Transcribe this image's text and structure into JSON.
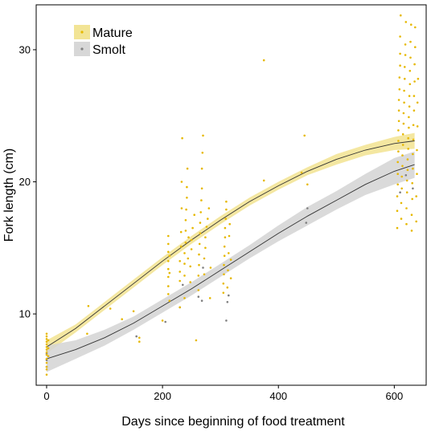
{
  "chart_data": {
    "type": "scatter",
    "title": "",
    "xlabel": "Days since beginning of food treatment",
    "ylabel": "Fork length (cm)",
    "xlim": [
      -18,
      655
    ],
    "ylim": [
      4.6,
      33.4
    ],
    "x_ticks": [
      0,
      200,
      400,
      600
    ],
    "y_ticks": [
      10,
      20,
      30
    ],
    "x_tick_labels": [
      "0",
      "200",
      "400",
      "600"
    ],
    "y_tick_labels": [
      "10",
      "20",
      "30"
    ],
    "grid": false,
    "legend": "top-left",
    "series": [
      {
        "name": "Mature",
        "color": "#e6b800",
        "band_color": "#f0df82",
        "fit": {
          "x": [
            0,
            50,
            100,
            150,
            200,
            250,
            300,
            350,
            400,
            450,
            500,
            550,
            600,
            635
          ],
          "y": [
            7.5,
            8.9,
            10.6,
            12.3,
            14.0,
            15.6,
            17.1,
            18.5,
            19.7,
            20.8,
            21.7,
            22.4,
            22.9,
            23.1
          ],
          "lower": [
            7.0,
            8.6,
            10.3,
            12.0,
            13.7,
            15.3,
            16.8,
            18.2,
            19.4,
            20.5,
            21.3,
            22.0,
            22.4,
            22.5
          ],
          "upper": [
            8.0,
            9.2,
            10.9,
            12.6,
            14.3,
            15.9,
            17.4,
            18.8,
            20.0,
            21.1,
            22.1,
            22.8,
            23.4,
            23.7
          ]
        },
        "points": [
          [
            0,
            5.4
          ],
          [
            0,
            5.8
          ],
          [
            0,
            6.0
          ],
          [
            0,
            6.3
          ],
          [
            0,
            6.6
          ],
          [
            0,
            6.9
          ],
          [
            0,
            7.1
          ],
          [
            0,
            7.3
          ],
          [
            0,
            7.5
          ],
          [
            0,
            7.7
          ],
          [
            0,
            7.9
          ],
          [
            0,
            8.1
          ],
          [
            0,
            8.3
          ],
          [
            0,
            8.5
          ],
          [
            3,
            6.8
          ],
          [
            3,
            7.4
          ],
          [
            3,
            8.0
          ],
          [
            70,
            8.5
          ],
          [
            72,
            10.6
          ],
          [
            110,
            10.4
          ],
          [
            130,
            9.6
          ],
          [
            150,
            10.2
          ],
          [
            160,
            8.2
          ],
          [
            160,
            7.9
          ],
          [
            200,
            9.5
          ],
          [
            210,
            11.5
          ],
          [
            210,
            12.1
          ],
          [
            210,
            12.8
          ],
          [
            210,
            13.4
          ],
          [
            210,
            14.0
          ],
          [
            210,
            14.7
          ],
          [
            210,
            15.3
          ],
          [
            210,
            15.9
          ],
          [
            212,
            11.0
          ],
          [
            212,
            13.1
          ],
          [
            212,
            14.4
          ],
          [
            230,
            10.5
          ],
          [
            230,
            12.5
          ],
          [
            230,
            13.2
          ],
          [
            230,
            14.0
          ],
          [
            232,
            15.1
          ],
          [
            232,
            16.2
          ],
          [
            233,
            18.0
          ],
          [
            233,
            20.0
          ],
          [
            234,
            23.3
          ],
          [
            238,
            11.2
          ],
          [
            238,
            12.9
          ],
          [
            238,
            13.8
          ],
          [
            238,
            14.6
          ],
          [
            240,
            15.4
          ],
          [
            240,
            16.3
          ],
          [
            240,
            17.1
          ],
          [
            241,
            17.9
          ],
          [
            242,
            18.8
          ],
          [
            242,
            19.6
          ],
          [
            243,
            21.0
          ],
          [
            244,
            14.2
          ],
          [
            245,
            15.8
          ],
          [
            248,
            12.4
          ],
          [
            248,
            13.6
          ],
          [
            250,
            14.9
          ],
          [
            250,
            15.6
          ],
          [
            252,
            16.5
          ],
          [
            255,
            17.5
          ],
          [
            258,
            8.0
          ],
          [
            262,
            11.8
          ],
          [
            262,
            12.9
          ],
          [
            263,
            13.7
          ],
          [
            263,
            14.5
          ],
          [
            264,
            15.3
          ],
          [
            265,
            16.1
          ],
          [
            265,
            16.9
          ],
          [
            266,
            17.7
          ],
          [
            267,
            18.6
          ],
          [
            268,
            19.5
          ],
          [
            268,
            21.0
          ],
          [
            269,
            22.2
          ],
          [
            270,
            23.5
          ],
          [
            272,
            13.0
          ],
          [
            272,
            14.2
          ],
          [
            274,
            15.0
          ],
          [
            274,
            15.8
          ],
          [
            276,
            16.6
          ],
          [
            278,
            17.2
          ],
          [
            280,
            18.0
          ],
          [
            282,
            11.2
          ],
          [
            283,
            13.5
          ],
          [
            305,
            11.6
          ],
          [
            305,
            12.3
          ],
          [
            306,
            13.0
          ],
          [
            306,
            13.7
          ],
          [
            307,
            14.4
          ],
          [
            307,
            15.1
          ],
          [
            308,
            15.8
          ],
          [
            308,
            16.5
          ],
          [
            309,
            17.2
          ],
          [
            310,
            17.9
          ],
          [
            310,
            18.5
          ],
          [
            312,
            12.0
          ],
          [
            313,
            13.3
          ],
          [
            314,
            14.6
          ],
          [
            315,
            15.9
          ],
          [
            316,
            16.8
          ],
          [
            318,
            12.7
          ],
          [
            318,
            14.1
          ],
          [
            375,
            29.2
          ],
          [
            375,
            20.1
          ],
          [
            440,
            20.7
          ],
          [
            445,
            23.5
          ],
          [
            450,
            19.8
          ],
          [
            605,
            16.5
          ],
          [
            605,
            17.8
          ],
          [
            605,
            18.9
          ],
          [
            606,
            19.8
          ],
          [
            606,
            20.6
          ],
          [
            606,
            21.5
          ],
          [
            607,
            22.3
          ],
          [
            607,
            23.1
          ],
          [
            607,
            23.9
          ],
          [
            608,
            24.6
          ],
          [
            608,
            25.4
          ],
          [
            608,
            26.2
          ],
          [
            609,
            27.0
          ],
          [
            609,
            27.9
          ],
          [
            610,
            28.8
          ],
          [
            610,
            29.7
          ],
          [
            610,
            31.0
          ],
          [
            611,
            32.6
          ],
          [
            612,
            17.2
          ],
          [
            612,
            18.4
          ],
          [
            613,
            19.5
          ],
          [
            613,
            20.4
          ],
          [
            614,
            21.2
          ],
          [
            614,
            22.0
          ],
          [
            615,
            22.8
          ],
          [
            615,
            23.6
          ],
          [
            616,
            24.4
          ],
          [
            616,
            25.2
          ],
          [
            617,
            26.0
          ],
          [
            617,
            26.9
          ],
          [
            618,
            27.8
          ],
          [
            618,
            28.7
          ],
          [
            619,
            29.6
          ],
          [
            619,
            30.4
          ],
          [
            620,
            32.1
          ],
          [
            621,
            16.8
          ],
          [
            621,
            18.0
          ],
          [
            622,
            19.2
          ],
          [
            622,
            20.1
          ],
          [
            623,
            20.9
          ],
          [
            623,
            21.7
          ],
          [
            624,
            22.5
          ],
          [
            624,
            23.3
          ],
          [
            625,
            24.1
          ],
          [
            625,
            24.9
          ],
          [
            626,
            25.7
          ],
          [
            626,
            26.5
          ],
          [
            627,
            27.4
          ],
          [
            627,
            28.4
          ],
          [
            628,
            29.4
          ],
          [
            628,
            30.6
          ],
          [
            629,
            31.9
          ],
          [
            630,
            16.3
          ],
          [
            630,
            17.5
          ],
          [
            631,
            18.7
          ],
          [
            631,
            19.9
          ],
          [
            632,
            21.0
          ],
          [
            632,
            22.1
          ],
          [
            633,
            23.2
          ],
          [
            633,
            24.3
          ],
          [
            634,
            25.4
          ],
          [
            634,
            26.5
          ],
          [
            635,
            27.6
          ],
          [
            635,
            28.9
          ],
          [
            636,
            30.2
          ],
          [
            636,
            31.7
          ],
          [
            638,
            17.0
          ],
          [
            638,
            18.9
          ],
          [
            639,
            20.6
          ],
          [
            639,
            22.4
          ],
          [
            640,
            24.2
          ],
          [
            640,
            26.0
          ],
          [
            641,
            27.8
          ]
        ]
      },
      {
        "name": "Smolt",
        "color": "#808080",
        "band_color": "#d3d3d3",
        "fit": {
          "x": [
            0,
            50,
            100,
            150,
            200,
            250,
            300,
            350,
            400,
            450,
            500,
            550,
            600,
            635
          ],
          "y": [
            6.6,
            7.3,
            8.2,
            9.3,
            10.6,
            11.9,
            13.3,
            14.7,
            16.1,
            17.4,
            18.6,
            19.8,
            20.8,
            21.3
          ],
          "lower": [
            5.6,
            6.6,
            7.6,
            8.8,
            10.1,
            11.4,
            12.8,
            14.2,
            15.5,
            16.7,
            17.9,
            19.0,
            19.8,
            20.3
          ],
          "upper": [
            7.6,
            8.0,
            8.8,
            9.8,
            11.1,
            12.4,
            13.8,
            15.2,
            16.7,
            18.1,
            19.3,
            20.6,
            21.8,
            22.3
          ]
        },
        "points": [
          [
            0,
            6.0
          ],
          [
            0,
            6.5
          ],
          [
            0,
            7.0
          ],
          [
            155,
            8.3
          ],
          [
            205,
            9.4
          ],
          [
            230,
            10.5
          ],
          [
            235,
            12.2
          ],
          [
            262,
            11.3
          ],
          [
            268,
            11.0
          ],
          [
            270,
            13.5
          ],
          [
            310,
            9.5
          ],
          [
            312,
            10.9
          ],
          [
            314,
            11.4
          ],
          [
            448,
            16.9
          ],
          [
            450,
            18.0
          ],
          [
            610,
            19.2
          ],
          [
            620,
            20.5
          ],
          [
            632,
            19.5
          ]
        ]
      }
    ]
  }
}
